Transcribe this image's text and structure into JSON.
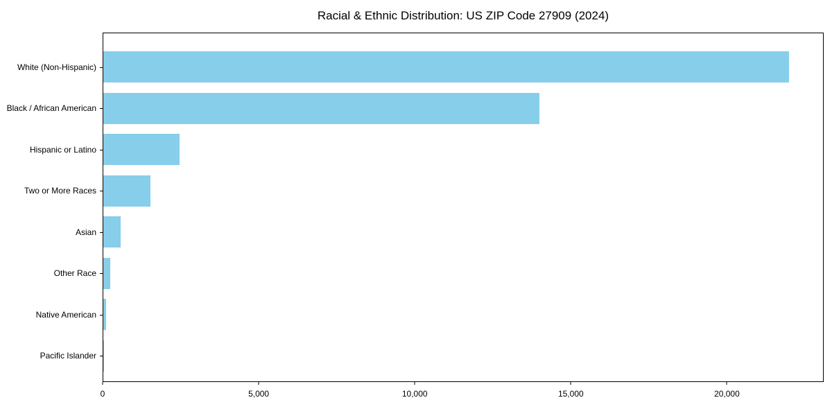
{
  "chart_data": {
    "type": "bar",
    "orientation": "horizontal",
    "title": "Racial & Ethnic Distribution: US ZIP Code 27909 (2024)",
    "categories": [
      "White (Non-Hispanic)",
      "Black / African American",
      "Hispanic or Latino",
      "Two or More Races",
      "Asian",
      "Other Race",
      "Native American",
      "Pacific Islander"
    ],
    "values": [
      22000,
      14000,
      2450,
      1520,
      560,
      230,
      100,
      20
    ],
    "xlabel": "",
    "ylabel": "",
    "xlim": [
      0,
      23100
    ],
    "x_ticks": [
      0,
      5000,
      10000,
      15000,
      20000
    ],
    "x_tick_labels": [
      "0",
      "5,000",
      "10,000",
      "15,000",
      "20,000"
    ],
    "bar_color": "#87CEEB",
    "axis_color": "#000000",
    "text_color": "#000000",
    "background_color": "#FFFFFF",
    "grid": false,
    "legend": null
  }
}
